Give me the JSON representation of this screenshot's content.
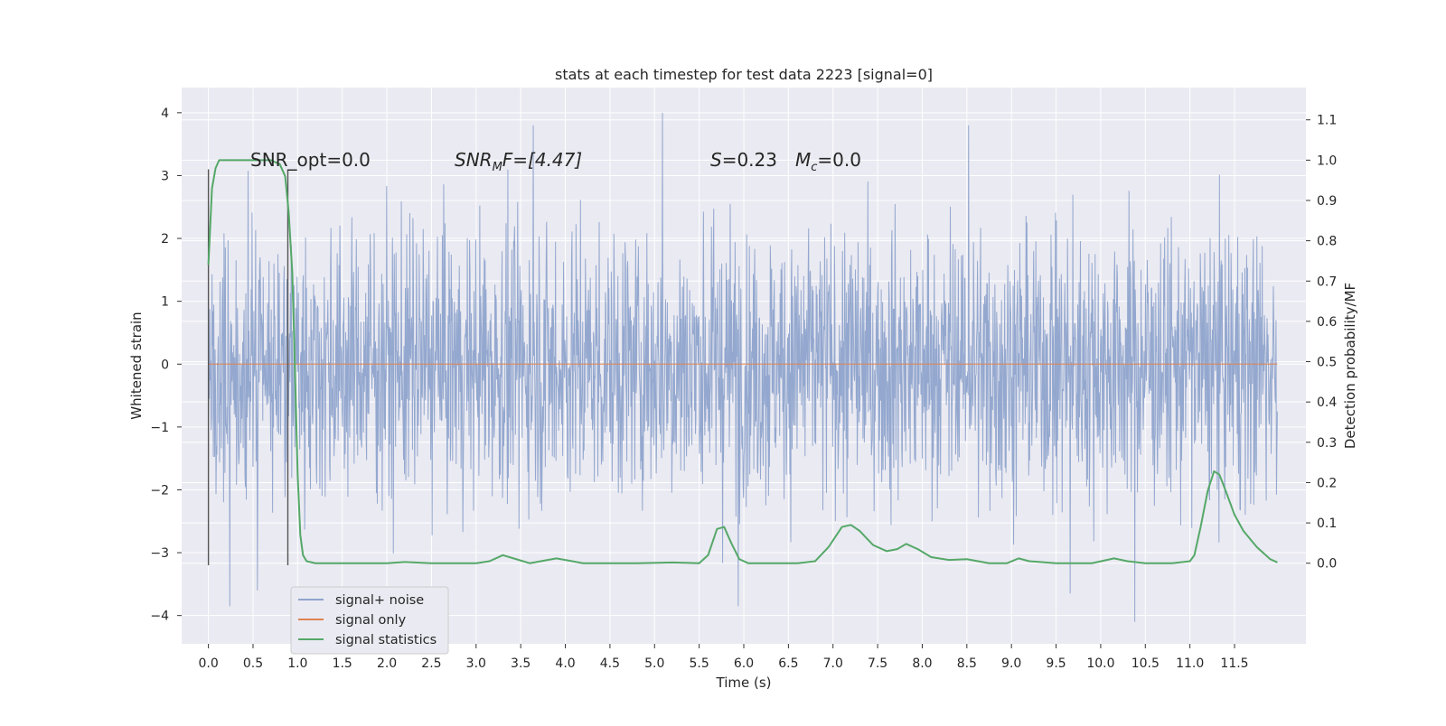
{
  "chart_data": {
    "type": "line",
    "title": "stats at each timestep for test data 2223 [signal=0]",
    "xlabel": "Time (s)",
    "ylabel": "Whitened strain",
    "y2label": "Detection probability/MF",
    "xlim": [
      -0.3,
      12.3
    ],
    "ylim": [
      -4.45,
      4.4
    ],
    "y2lim": [
      -0.2,
      1.18
    ],
    "xticks": [
      0.0,
      0.5,
      1.0,
      1.5,
      2.0,
      2.5,
      3.0,
      3.5,
      4.0,
      4.5,
      5.0,
      5.5,
      6.0,
      6.5,
      7.0,
      7.5,
      8.0,
      8.5,
      9.0,
      9.5,
      10.0,
      10.5,
      11.0,
      11.5
    ],
    "xtick_labels": [
      "0.0",
      "0.5",
      "1.0",
      "1.5",
      "2.0",
      "2.5",
      "3.0",
      "3.5",
      "4.0",
      "4.5",
      "5.0",
      "5.5",
      "6.0",
      "6.5",
      "7.0",
      "7.5",
      "8.0",
      "8.5",
      "9.0",
      "9.5",
      "10.0",
      "10.5",
      "11.0",
      "11.5"
    ],
    "yticks": [
      -4,
      -3,
      -2,
      -1,
      0,
      1,
      2,
      3,
      4
    ],
    "ytick_labels": [
      "−4",
      "−3",
      "−2",
      "−1",
      "0",
      "1",
      "2",
      "3",
      "4"
    ],
    "y2ticks": [
      0.0,
      0.1,
      0.2,
      0.3,
      0.4,
      0.5,
      0.6,
      0.7,
      0.8,
      0.9,
      1.0,
      1.1
    ],
    "y2tick_labels": [
      "0.0",
      "0.1",
      "0.2",
      "0.3",
      "0.4",
      "0.5",
      "0.6",
      "0.7",
      "0.8",
      "0.9",
      "1.0",
      "1.1"
    ],
    "grid": true,
    "legend_position": "lower-left",
    "annotations": {
      "snr_opt": "SNR_opt=0.0",
      "snr_mf_base": "SNR",
      "snr_mf_sub": "M",
      "snr_mf_rest": "F=[4.47]",
      "s_base": "S",
      "s_rest": "=0.23",
      "mc_base": "M",
      "mc_sub": "c",
      "mc_rest": "=0.0"
    },
    "vlines": [
      {
        "x": 0.0,
        "ymin": -3.2,
        "ymax": 3.1
      },
      {
        "x": 0.89,
        "ymin": -3.2,
        "ymax": 3.1
      }
    ],
    "series": [
      {
        "name": "signal+ noise",
        "axis": "left",
        "color": "#8fa4cc",
        "kind": "noise",
        "x_range": [
          0.0,
          11.98
        ],
        "envelope": {
          "p95": 2.1,
          "max": 4.0,
          "min": -4.1
        },
        "notable_peaks": [
          [
            5.09,
            4.0
          ],
          [
            8.52,
            3.8
          ],
          [
            3.64,
            3.8
          ],
          [
            10.38,
            -4.1
          ],
          [
            0.24,
            -3.85
          ],
          [
            5.94,
            -3.85
          ],
          [
            9.66,
            -3.65
          ],
          [
            0.55,
            -3.6
          ]
        ]
      },
      {
        "name": "signal only",
        "axis": "left",
        "color": "#dd8452",
        "x": [
          0.0,
          11.98
        ],
        "y": [
          0.0,
          0.0
        ]
      },
      {
        "name": "signal statistics",
        "axis": "right",
        "color": "#55a868",
        "x": [
          0.0,
          0.04,
          0.08,
          0.12,
          0.2,
          0.3,
          0.5,
          0.7,
          0.8,
          0.86,
          0.9,
          0.94,
          0.97,
          1.0,
          1.03,
          1.06,
          1.1,
          1.2,
          1.5,
          2.0,
          2.2,
          2.5,
          3.0,
          3.15,
          3.3,
          3.45,
          3.6,
          3.9,
          4.2,
          4.8,
          5.2,
          5.5,
          5.6,
          5.7,
          5.78,
          5.86,
          5.95,
          6.05,
          6.2,
          6.6,
          6.8,
          6.95,
          7.1,
          7.2,
          7.3,
          7.45,
          7.6,
          7.72,
          7.82,
          7.95,
          8.1,
          8.3,
          8.5,
          8.75,
          8.95,
          9.08,
          9.2,
          9.5,
          9.9,
          10.15,
          10.3,
          10.5,
          10.8,
          11.0,
          11.05,
          11.12,
          11.2,
          11.27,
          11.33,
          11.4,
          11.5,
          11.6,
          11.75,
          11.9,
          11.98
        ],
        "y": [
          0.74,
          0.93,
          0.98,
          1.0,
          1.0,
          1.0,
          1.0,
          1.0,
          0.99,
          0.96,
          0.87,
          0.72,
          0.48,
          0.22,
          0.07,
          0.02,
          0.005,
          0.0,
          0.0,
          0.0,
          0.003,
          0.0,
          0.0,
          0.005,
          0.02,
          0.01,
          0.0,
          0.012,
          0.0,
          0.0,
          0.002,
          0.0,
          0.02,
          0.085,
          0.09,
          0.05,
          0.01,
          0.0,
          0.0,
          0.0,
          0.005,
          0.04,
          0.09,
          0.095,
          0.08,
          0.045,
          0.03,
          0.035,
          0.048,
          0.035,
          0.015,
          0.008,
          0.01,
          0.0,
          0.0,
          0.012,
          0.005,
          0.0,
          0.0,
          0.012,
          0.005,
          0.0,
          0.0,
          0.005,
          0.02,
          0.09,
          0.18,
          0.228,
          0.22,
          0.18,
          0.12,
          0.08,
          0.04,
          0.01,
          0.002
        ]
      }
    ]
  }
}
